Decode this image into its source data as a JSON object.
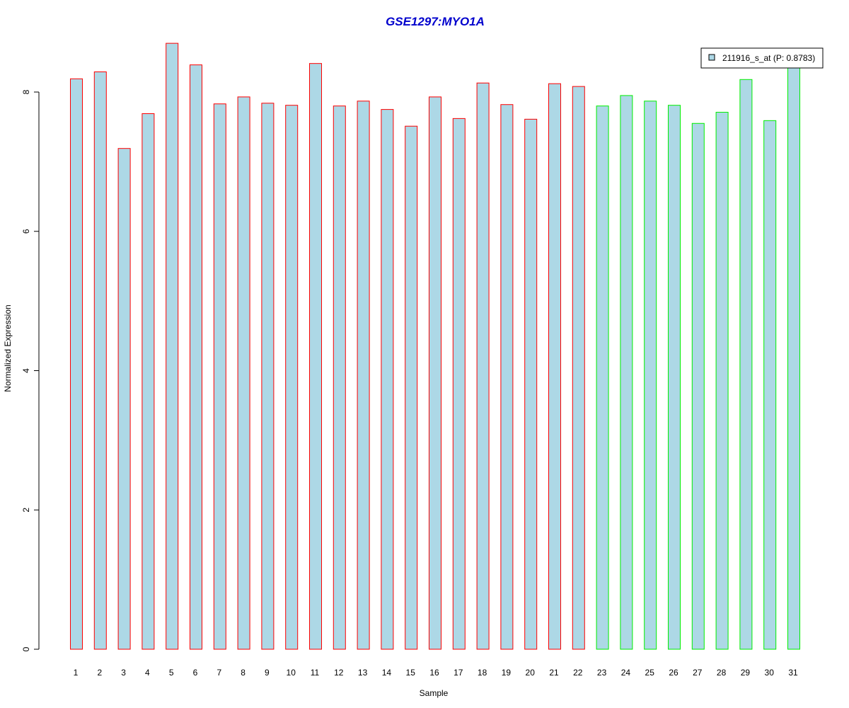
{
  "chart_data": {
    "type": "bar",
    "title": "GSE1297:MYO1A",
    "xlabel": "Sample",
    "ylabel": "Normalized Expression",
    "categories": [
      "1",
      "2",
      "3",
      "4",
      "5",
      "6",
      "7",
      "8",
      "9",
      "10",
      "11",
      "12",
      "13",
      "14",
      "15",
      "16",
      "17",
      "18",
      "19",
      "20",
      "21",
      "22",
      "23",
      "24",
      "25",
      "26",
      "27",
      "28",
      "29",
      "30",
      "31"
    ],
    "series": [
      {
        "name": "211916_s_at (P: 0.8783)",
        "values": [
          8.19,
          8.29,
          7.19,
          7.69,
          8.7,
          8.39,
          7.83,
          7.93,
          7.84,
          7.81,
          8.41,
          7.8,
          7.87,
          7.75,
          7.51,
          7.93,
          7.62,
          8.13,
          7.82,
          7.61,
          8.12,
          8.08,
          7.8,
          7.95,
          7.87,
          7.81,
          7.55,
          7.71,
          8.18,
          7.59,
          8.35
        ]
      }
    ],
    "groups": [
      {
        "samples": [
          1,
          22
        ],
        "border_color": "#ff0000"
      },
      {
        "samples": [
          23,
          31
        ],
        "border_color": "#00ee00"
      }
    ],
    "yticks": [
      0,
      2,
      4,
      6,
      8
    ],
    "ylim": [
      0,
      8.5
    ],
    "grid": false,
    "legend_position": "top-right",
    "colors": {
      "bar_fill": "#add8e6",
      "title": "#0000cd",
      "axis": "#000000"
    }
  }
}
